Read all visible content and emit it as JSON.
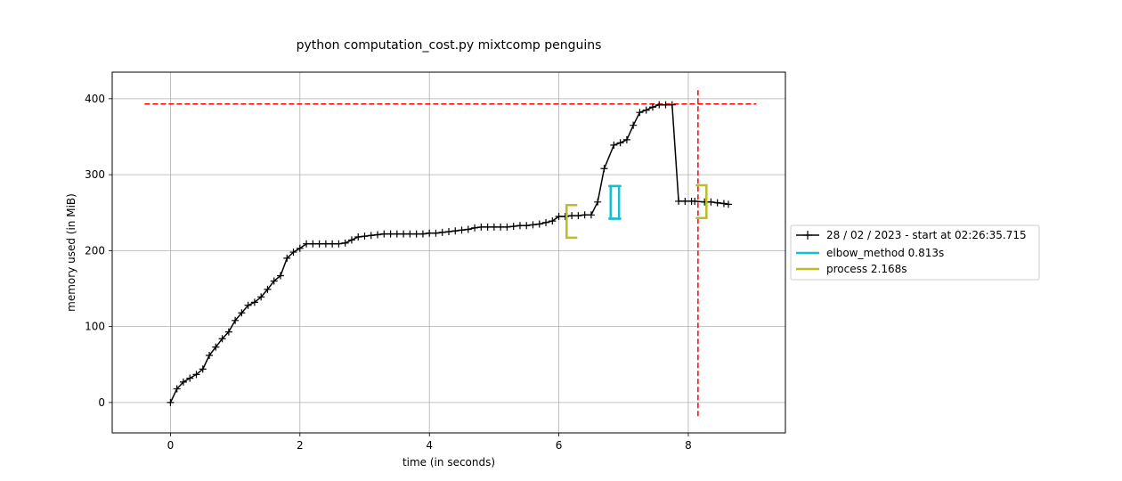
{
  "chart_data": {
    "type": "line",
    "title": "python computation_cost.py mixtcomp penguins",
    "xlabel": "time (in seconds)",
    "ylabel": "memory used (in MiB)",
    "xlim": [
      -0.9,
      9.5
    ],
    "ylim": [
      -40,
      435
    ],
    "xticks": [
      0,
      2,
      4,
      6,
      8
    ],
    "yticks": [
      0,
      100,
      200,
      300,
      400
    ],
    "grid": true,
    "legend_position": "right",
    "series": [
      {
        "name": "28 / 02 / 2023 - start at 02:26:35.715",
        "color": "#000000",
        "marker": "+",
        "x": [
          0.0,
          0.1,
          0.2,
          0.3,
          0.4,
          0.5,
          0.6,
          0.7,
          0.8,
          0.9,
          1.0,
          1.1,
          1.2,
          1.3,
          1.4,
          1.5,
          1.6,
          1.7,
          1.8,
          1.9,
          2.0,
          2.1,
          2.2,
          2.3,
          2.4,
          2.5,
          2.6,
          2.7,
          2.8,
          2.9,
          3.0,
          3.1,
          3.2,
          3.3,
          3.4,
          3.5,
          3.6,
          3.7,
          3.8,
          3.9,
          4.0,
          4.1,
          4.2,
          4.3,
          4.4,
          4.5,
          4.6,
          4.7,
          4.8,
          4.9,
          5.0,
          5.1,
          5.2,
          5.3,
          5.4,
          5.5,
          5.6,
          5.7,
          5.8,
          5.9,
          6.0,
          6.1,
          6.2,
          6.3,
          6.4,
          6.5,
          6.6,
          6.7,
          6.8,
          6.9,
          7.0,
          7.1,
          7.2,
          7.3,
          7.4,
          7.5,
          7.6,
          7.7,
          7.8,
          7.9,
          8.0,
          8.1,
          8.2,
          8.3,
          8.4,
          8.5,
          8.6
        ],
        "y": [
          0,
          18,
          27,
          32,
          37,
          44,
          62,
          73,
          80,
          90,
          108,
          118,
          127,
          131,
          137,
          145,
          158,
          165,
          190,
          197,
          203,
          208,
          209,
          209,
          209,
          209,
          209,
          211,
          215,
          218,
          220,
          221,
          222,
          222,
          222,
          222,
          222,
          223,
          223,
          223,
          223,
          224,
          224,
          225,
          226,
          227,
          229,
          230,
          231,
          232,
          232,
          232,
          232,
          232,
          233,
          234,
          235,
          236,
          238,
          241,
          245,
          246,
          246,
          247,
          247,
          249,
          264,
          308,
          339,
          343,
          347,
          365,
          382,
          385,
          390,
          392,
          392,
          393,
          265,
          265,
          265,
          263,
          264,
          264,
          263,
          262,
          261
        ],
        "x_points": [
          0.0,
          0.1,
          0.2,
          0.3,
          0.4,
          0.5,
          0.6,
          0.7,
          0.8,
          0.9,
          1.0,
          1.1,
          1.2,
          1.3,
          1.4,
          1.5,
          1.6,
          1.7,
          1.8,
          1.9,
          2.0,
          2.1,
          2.2,
          2.3,
          2.4,
          2.5,
          2.6,
          2.7,
          2.8,
          2.9,
          3.0,
          3.1,
          3.2,
          3.3,
          3.4,
          3.5,
          3.6,
          3.7,
          3.8,
          3.9,
          4.0,
          4.1,
          4.2,
          4.3,
          4.4,
          4.5,
          4.6,
          4.7,
          4.8,
          4.9,
          5.0,
          5.1,
          5.2,
          5.3,
          5.4,
          5.5,
          5.6,
          5.7,
          5.8,
          5.9,
          6.0,
          6.1,
          6.2,
          6.3,
          6.4,
          6.5,
          6.6,
          6.7,
          6.85,
          6.95,
          7.05,
          7.15,
          7.25,
          7.35,
          7.45,
          7.55,
          7.65,
          7.75,
          7.85,
          7.95,
          8.05,
          8.1,
          8.25,
          8.35,
          8.45,
          8.55,
          8.62
        ],
        "y_points": [
          0,
          18,
          27,
          32,
          37,
          44,
          62,
          73,
          84,
          93,
          108,
          118,
          128,
          132,
          139,
          149,
          160,
          167,
          190,
          198,
          203,
          209,
          209,
          209,
          209,
          209,
          209,
          210,
          214,
          218,
          219,
          220,
          221,
          222,
          222,
          222,
          222,
          222,
          222,
          222,
          223,
          223,
          224,
          225,
          226,
          227,
          228,
          230,
          231,
          231,
          231,
          231,
          231,
          232,
          233,
          233,
          234,
          235,
          237,
          239,
          245,
          245,
          246,
          246,
          247,
          247,
          264,
          308,
          339,
          342,
          346,
          365,
          382,
          385,
          389,
          392,
          392,
          392,
          265,
          265,
          265,
          265,
          264,
          264,
          263,
          262,
          261
        ]
      }
    ],
    "function_brackets": [
      {
        "name": "elbow_method 0.813s",
        "color": "#17becf",
        "x_start": 6.8,
        "x_end": 6.93,
        "y_low": 242,
        "y_high": 285
      },
      {
        "name": "process 2.168s",
        "color": "#bcbd22",
        "x_start": 6.12,
        "x_end": 8.28,
        "y_low": 217,
        "y_high": 260,
        "y_low_end": 243,
        "y_high_end": 286
      }
    ],
    "max_memory_line": {
      "y": 393,
      "x_from": -0.4,
      "x_to": 9.05,
      "color": "#ff0000"
    },
    "max_time_line": {
      "x": 8.15,
      "y_from": -18,
      "y_to": 415,
      "color": "#ff0000"
    }
  }
}
